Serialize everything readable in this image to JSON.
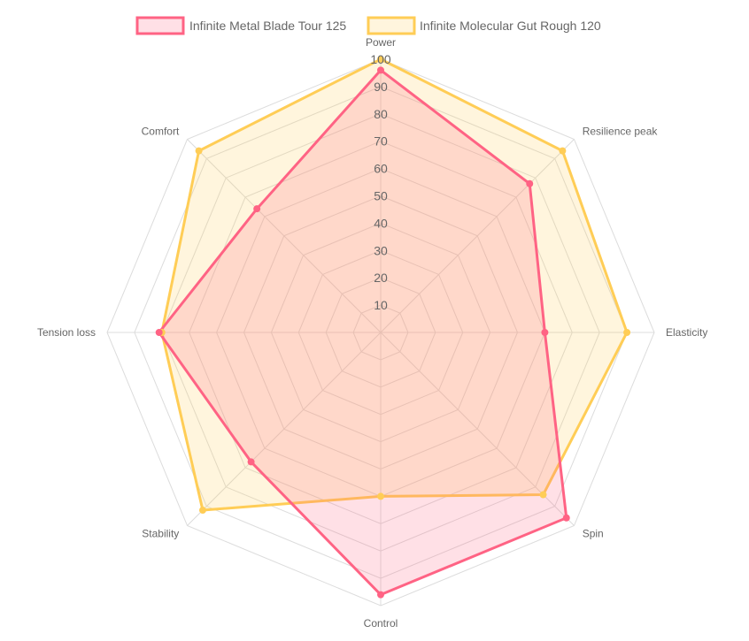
{
  "chart_data": {
    "type": "radar",
    "categories": [
      "Power",
      "Resilience peak",
      "Elasticity",
      "Spin",
      "Control",
      "Stability",
      "Tension loss",
      "Comfort"
    ],
    "r_range": [
      0,
      100
    ],
    "ticks": [
      "10",
      "20",
      "30",
      "40",
      "50",
      "60",
      "70",
      "80",
      "90",
      "100"
    ],
    "legend_position": "top-center",
    "grid": true,
    "series": [
      {
        "name": "Infinite Metal Blade Tour 125",
        "values": [
          96,
          77,
          60,
          96,
          96,
          67,
          81,
          64
        ],
        "border_color": "#ff6384",
        "fill_color": "rgba(255,99,132,0.2)"
      },
      {
        "name": "Infinite Molecular Gut Rough 120",
        "values": [
          100,
          94,
          90,
          84,
          60,
          92,
          80,
          94
        ],
        "border_color": "#ffcd56",
        "fill_color": "rgba(255,205,86,0.2)"
      }
    ]
  }
}
